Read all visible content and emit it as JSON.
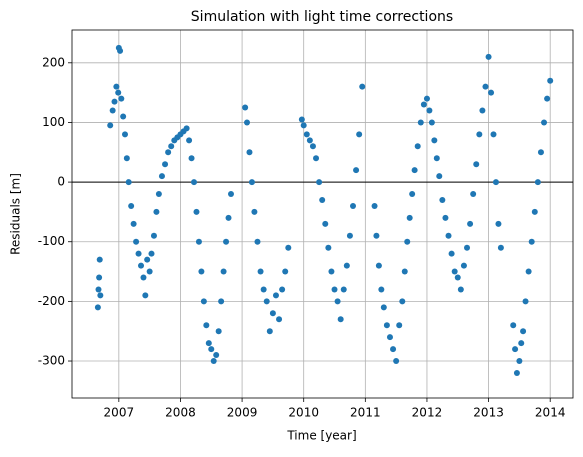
{
  "chart_data": {
    "type": "scatter",
    "title": "Simulation with light time corrections",
    "xlabel": "Time [year]",
    "ylabel": "Residuals [m]",
    "xlim": [
      2006.24,
      2014.37
    ],
    "ylim": [
      -362,
      255
    ],
    "xticks": [
      2007,
      2008,
      2009,
      2010,
      2011,
      2012,
      2013,
      2014
    ],
    "yticks": [
      -300,
      -200,
      -100,
      0,
      100,
      200
    ],
    "grid": true,
    "hline": 0,
    "series": [
      {
        "color": "#1f77b4",
        "x": [
          2006.66,
          2006.67,
          2006.68,
          2006.69,
          2006.7,
          2006.86,
          2006.9,
          2006.93,
          2006.96,
          2006.99,
          2007.0,
          2007.02,
          2007.04,
          2007.07,
          2007.1,
          2007.13,
          2007.16,
          2007.2,
          2007.24,
          2007.28,
          2007.32,
          2007.36,
          2007.4,
          2007.43,
          2007.46,
          2007.5,
          2007.53,
          2007.57,
          2007.61,
          2007.65,
          2007.7,
          2007.75,
          2007.8,
          2007.85,
          2007.9,
          2007.95,
          2008.0,
          2008.05,
          2008.1,
          2008.14,
          2008.18,
          2008.22,
          2008.26,
          2008.3,
          2008.34,
          2008.38,
          2008.42,
          2008.46,
          2008.5,
          2008.54,
          2008.58,
          2008.62,
          2008.66,
          2008.7,
          2008.74,
          2008.78,
          2008.82,
          2009.05,
          2009.08,
          2009.12,
          2009.16,
          2009.2,
          2009.25,
          2009.3,
          2009.35,
          2009.4,
          2009.45,
          2009.5,
          2009.55,
          2009.6,
          2009.65,
          2009.7,
          2009.75,
          2009.97,
          2010.0,
          2010.05,
          2010.1,
          2010.15,
          2010.2,
          2010.25,
          2010.3,
          2010.35,
          2010.4,
          2010.45,
          2010.5,
          2010.55,
          2010.6,
          2010.65,
          2010.7,
          2010.75,
          2010.8,
          2010.85,
          2010.9,
          2010.95,
          2011.15,
          2011.18,
          2011.22,
          2011.26,
          2011.3,
          2011.35,
          2011.4,
          2011.45,
          2011.5,
          2011.55,
          2011.6,
          2011.64,
          2011.68,
          2011.72,
          2011.76,
          2011.8,
          2011.85,
          2011.9,
          2011.95,
          2012.0,
          2012.04,
          2012.08,
          2012.12,
          2012.16,
          2012.2,
          2012.25,
          2012.3,
          2012.35,
          2012.4,
          2012.45,
          2012.5,
          2012.55,
          2012.6,
          2012.65,
          2012.7,
          2012.75,
          2012.8,
          2012.85,
          2012.9,
          2012.95,
          2013.0,
          2013.04,
          2013.08,
          2013.12,
          2013.16,
          2013.2,
          2013.4,
          2013.43,
          2013.46,
          2013.5,
          2013.53,
          2013.56,
          2013.6,
          2013.65,
          2013.7,
          2013.75,
          2013.8,
          2013.85,
          2013.9,
          2013.95,
          2014.0
        ],
        "values": [
          -210,
          -180,
          -160,
          -130,
          -190,
          95,
          120,
          135,
          160,
          150,
          225,
          220,
          140,
          110,
          80,
          40,
          0,
          -40,
          -70,
          -100,
          -120,
          -140,
          -160,
          -190,
          -130,
          -150,
          -120,
          -90,
          -50,
          -20,
          10,
          30,
          50,
          60,
          70,
          75,
          80,
          85,
          90,
          70,
          40,
          0,
          -50,
          -100,
          -150,
          -200,
          -240,
          -270,
          -280,
          -300,
          -290,
          -250,
          -200,
          -150,
          -100,
          -60,
          -20,
          125,
          100,
          50,
          0,
          -50,
          -100,
          -150,
          -180,
          -200,
          -250,
          -220,
          -190,
          -230,
          -180,
          -150,
          -110,
          105,
          95,
          80,
          70,
          60,
          40,
          0,
          -30,
          -70,
          -110,
          -150,
          -180,
          -200,
          -230,
          -180,
          -140,
          -90,
          -40,
          20,
          80,
          160,
          -40,
          -90,
          -140,
          -180,
          -210,
          -240,
          -260,
          -280,
          -300,
          -240,
          -200,
          -150,
          -100,
          -60,
          -20,
          20,
          60,
          100,
          130,
          140,
          120,
          100,
          70,
          40,
          10,
          -30,
          -60,
          -90,
          -120,
          -150,
          -160,
          -180,
          -140,
          -110,
          -70,
          -20,
          30,
          80,
          120,
          160,
          210,
          150,
          80,
          0,
          -70,
          -110,
          -240,
          -280,
          -320,
          -300,
          -270,
          -250,
          -200,
          -150,
          -100,
          -50,
          0,
          50,
          100,
          140,
          170
        ]
      }
    ]
  }
}
